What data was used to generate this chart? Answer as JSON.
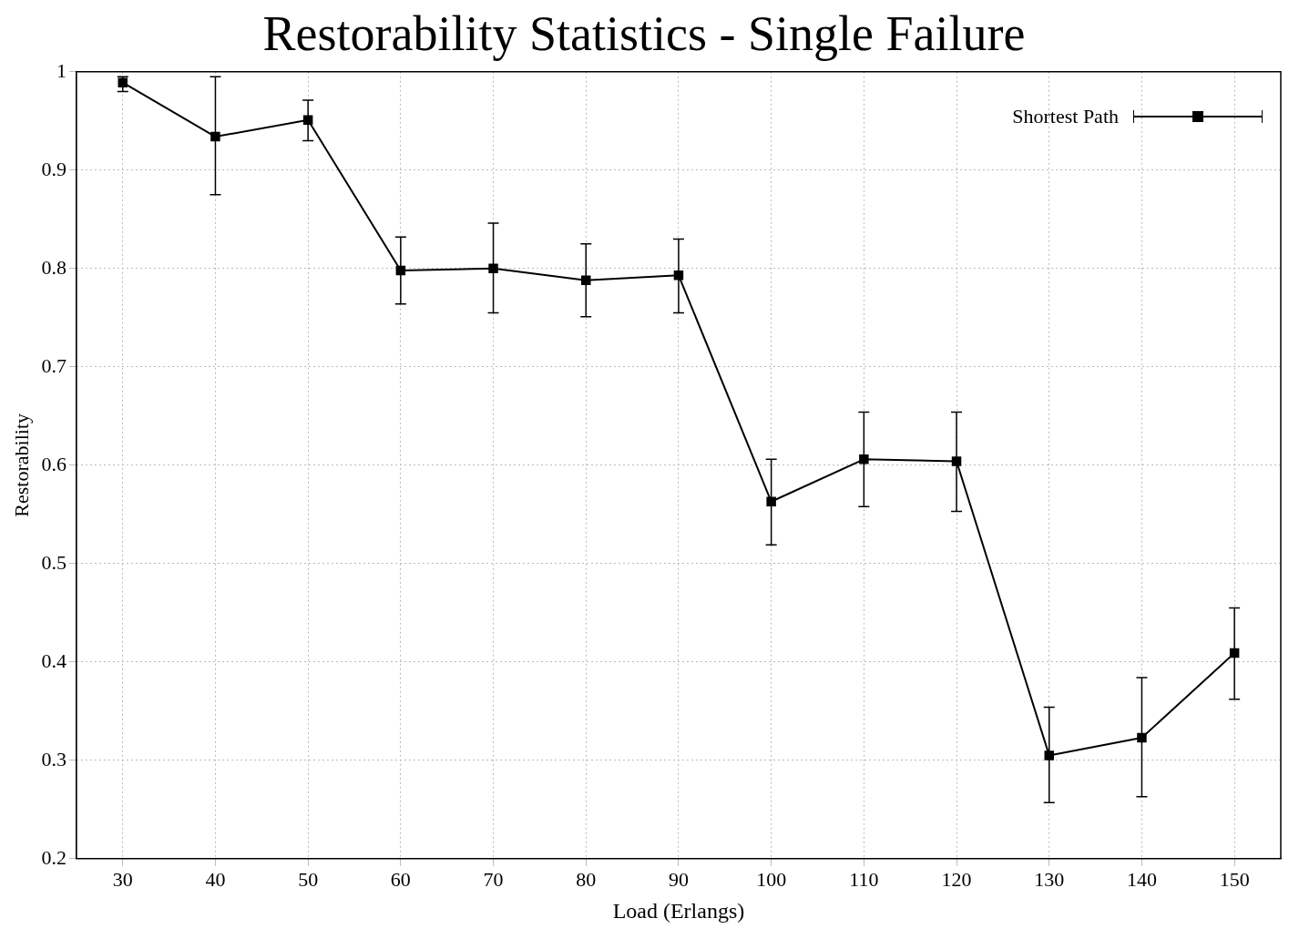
{
  "chart_data": {
    "type": "line",
    "title": "Restorability Statistics - Single Failure",
    "xlabel": "Load (Erlangs)",
    "ylabel": "Restorability",
    "x": [
      30,
      40,
      50,
      60,
      70,
      80,
      90,
      100,
      110,
      120,
      130,
      140,
      150
    ],
    "series": [
      {
        "name": "Shortest Path",
        "color": "#000000",
        "values": [
          0.989,
          0.934,
          0.951,
          0.798,
          0.8,
          0.788,
          0.793,
          0.563,
          0.606,
          0.604,
          0.305,
          0.323,
          0.409
        ],
        "errors": [
          [
            0.98,
            0.995
          ],
          [
            0.875,
            0.995
          ],
          [
            0.93,
            0.971
          ],
          [
            0.764,
            0.832
          ],
          [
            0.755,
            0.846
          ],
          [
            0.751,
            0.825
          ],
          [
            0.755,
            0.83
          ],
          [
            0.519,
            0.606
          ],
          [
            0.558,
            0.654
          ],
          [
            0.553,
            0.654
          ],
          [
            0.257,
            0.354
          ],
          [
            0.263,
            0.384
          ],
          [
            0.362,
            0.455
          ]
        ]
      }
    ],
    "xlim": [
      25,
      155
    ],
    "xticks": [
      30,
      40,
      50,
      60,
      70,
      80,
      90,
      100,
      110,
      120,
      130,
      140,
      150
    ],
    "ylim": [
      0.2,
      1
    ],
    "yticks": [
      0.2,
      0.3,
      0.4,
      0.5,
      0.6,
      0.7,
      0.8,
      0.9,
      1
    ],
    "grid": true,
    "legend": "top right",
    "marker": "square",
    "line_style": "solid"
  }
}
